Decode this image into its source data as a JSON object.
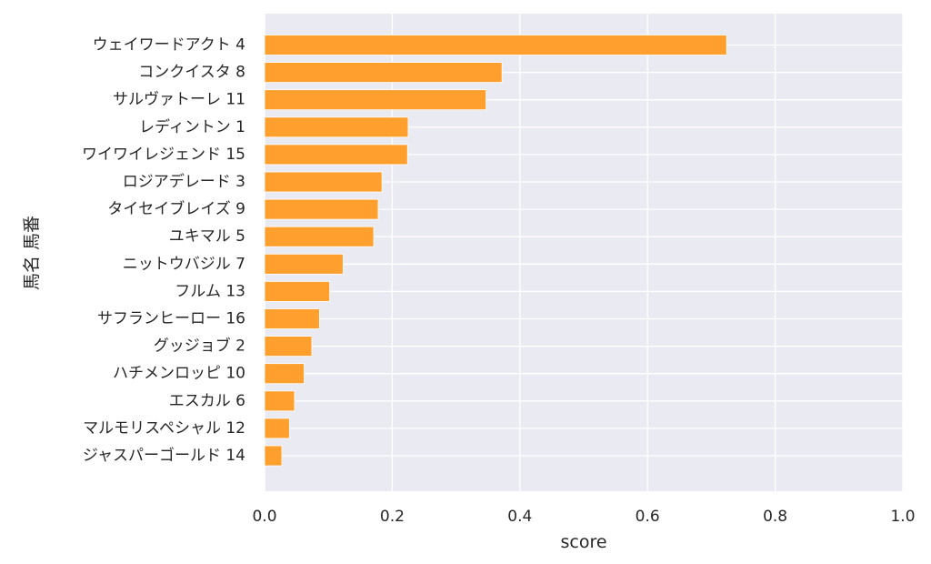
{
  "chart_data": {
    "type": "bar",
    "orientation": "horizontal",
    "categories": [
      "ウェイワードアクト 4",
      "コンクイスタ 8",
      "サルヴァトーレ 11",
      "レディントン 1",
      "ワイワイレジェンド 15",
      "ロジアデレード 3",
      "タイセイブレイズ 9",
      "ユキマル 5",
      "ニットウバジル 7",
      "フルム 13",
      "サフランヒーロー 16",
      "グッジョブ 2",
      "ハチメンロッピ 10",
      "エスカル 6",
      "マルモリスペシャル 12",
      "ジャスパーゴールド 14"
    ],
    "values": [
      0.724,
      0.372,
      0.347,
      0.225,
      0.224,
      0.184,
      0.178,
      0.171,
      0.123,
      0.102,
      0.086,
      0.074,
      0.062,
      0.047,
      0.039,
      0.027
    ],
    "xlabel": "score",
    "ylabel": "馬名 馬番",
    "xlim": [
      0.0,
      1.0
    ],
    "xticks": [
      "0.0",
      "0.2",
      "0.4",
      "0.6",
      "0.8",
      "1.0"
    ],
    "grid": true,
    "bar_color": "#ff9f2e",
    "plot_background": "#eaeaf2",
    "grid_color": "#ffffff"
  }
}
